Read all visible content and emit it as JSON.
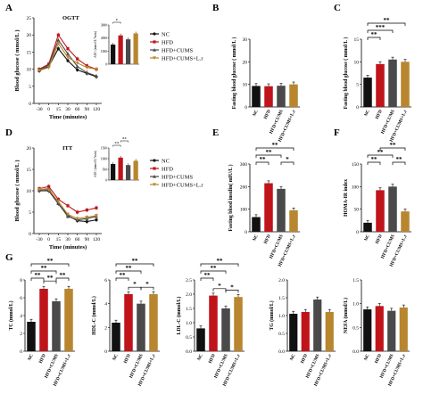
{
  "colors": {
    "NC": "#111111",
    "HFD": "#c0141b",
    "HFD+CUMS": "#4a4a4a",
    "HFD+CUMS+L.r": "#b8862e"
  },
  "groups": [
    "NC",
    "HFD",
    "HFD+CUMS",
    "HFD+CUMS+L.r"
  ],
  "chart_data": [
    {
      "id": "A",
      "type": "line",
      "title": "OGTT",
      "xlabel": "Time (minutes)",
      "ylabel": "Blood glucose ( mmol/L )",
      "x": [
        -30,
        0,
        15,
        30,
        60,
        90,
        120
      ],
      "x_tick_labels": [
        "-30",
        "0",
        "15",
        "30",
        "60",
        "90",
        "120"
      ],
      "ylim": [
        0,
        25
      ],
      "y_ticks": [
        "0",
        "5",
        "10",
        "15",
        "20",
        "25"
      ],
      "legend": "right",
      "series": [
        {
          "name": "NC",
          "values": [
            9.5,
            10.8,
            16.0,
            12.5,
            9.8,
            8.8,
            7.8
          ]
        },
        {
          "name": "HFD",
          "values": [
            10.0,
            11.5,
            20.0,
            16.0,
            13.0,
            11.0,
            10.0
          ]
        },
        {
          "name": "HFD+CUMS",
          "values": [
            9.8,
            11.2,
            18.5,
            14.5,
            10.8,
            9.0,
            8.0
          ]
        },
        {
          "name": "HFD+CUMS+L.r",
          "values": [
            9.6,
            10.5,
            17.5,
            13.5,
            11.8,
            10.5,
            10.0
          ]
        }
      ],
      "inset": {
        "type": "bar",
        "ylabel": "AUC (mmol/L*min)",
        "ylim": [
          0,
          3000
        ],
        "y_ticks": [
          "0",
          "1000",
          "2000",
          "3000"
        ],
        "values": [
          1500,
          2200,
          1900,
          2350
        ],
        "sig": [
          "*"
        ]
      }
    },
    {
      "id": "B",
      "type": "bar",
      "ylabel": "Fasting blood glucose ( mmol/L )",
      "ylim": [
        0,
        30
      ],
      "y_ticks": [
        "0",
        "10",
        "20",
        "30"
      ],
      "categories": [
        "NC",
        "HFD",
        "HFD+CUMS",
        "HFD+CUMS+L.r"
      ],
      "values": [
        9.3,
        9.2,
        9.4,
        10.0
      ],
      "sig": []
    },
    {
      "id": "C",
      "type": "bar",
      "ylabel": "Fasting blood glucose ( mmol/L )",
      "ylim": [
        0,
        15
      ],
      "y_ticks": [
        "0",
        "5",
        "10",
        "15"
      ],
      "categories": [
        "NC",
        "HFD",
        "HFD+CUMS",
        "HFD+CUMS+L.r"
      ],
      "values": [
        6.5,
        9.5,
        10.5,
        10.0
      ],
      "sig": [
        "**",
        "***",
        "**"
      ]
    },
    {
      "id": "D",
      "type": "line",
      "title": "ITT",
      "xlabel": "Time (minutes)",
      "ylabel": "Blood glucose ( mmol/L )",
      "x": [
        -30,
        0,
        15,
        30,
        60,
        90,
        120
      ],
      "x_tick_labels": [
        "-30",
        "0",
        "15",
        "30",
        "60",
        "90",
        "120"
      ],
      "ylim": [
        0,
        20
      ],
      "y_ticks": [
        "0",
        "5",
        "10",
        "15",
        "20"
      ],
      "legend": "right",
      "series": [
        {
          "name": "NC",
          "values": [
            10.0,
            10.0,
            7.0,
            4.2,
            3.0,
            2.8,
            3.2
          ]
        },
        {
          "name": "HFD",
          "values": [
            10.5,
            11.0,
            8.0,
            6.5,
            5.0,
            5.5,
            6.0
          ]
        },
        {
          "name": "HFD+CUMS",
          "values": [
            10.2,
            10.5,
            7.0,
            4.0,
            3.2,
            3.5,
            4.0
          ]
        },
        {
          "name": "HFD+CUMS+L.r",
          "values": [
            10.3,
            10.2,
            7.5,
            4.5,
            3.5,
            3.8,
            4.2
          ]
        }
      ],
      "inset": {
        "type": "bar",
        "ylabel": "AUC (mmol/L*min)",
        "ylim": [
          0,
          1500
        ],
        "y_ticks": [
          "0",
          "500",
          "1000",
          "1500"
        ],
        "values": [
          750,
          1050,
          700,
          900
        ],
        "sig": [
          "**",
          "**"
        ]
      }
    },
    {
      "id": "E",
      "type": "bar",
      "ylabel": "Fasting blood insulin( mIU/L )",
      "ylim": [
        0,
        300
      ],
      "y_ticks": [
        "0",
        "100",
        "200",
        "300"
      ],
      "categories": [
        "NC",
        "HFD",
        "HFD+CUMS",
        "HFD+CUMS+L.r"
      ],
      "values": [
        65,
        215,
        190,
        95
      ],
      "sig": [
        "**",
        "**",
        "**",
        "*"
      ]
    },
    {
      "id": "F",
      "type": "bar",
      "ylabel": "HOMA-IR index",
      "ylim": [
        0,
        150
      ],
      "y_ticks": [
        "0",
        "50",
        "100",
        "150"
      ],
      "categories": [
        "NC",
        "HFD",
        "HFD+CUMS",
        "HFD+CUMS+L.r"
      ],
      "values": [
        20,
        92,
        100,
        45
      ],
      "sig": [
        "**",
        "**",
        "**",
        "**"
      ]
    },
    {
      "id": "G1",
      "type": "bar",
      "ylabel": "TC (mmol/L)",
      "ylim": [
        0,
        8
      ],
      "y_ticks": [
        "0",
        "2",
        "4",
        "6",
        "8"
      ],
      "categories": [
        "NC",
        "HFD",
        "HFD+CUMS",
        "HFD+CUMS+L.r"
      ],
      "values": [
        3.3,
        7.0,
        5.6,
        7.0
      ],
      "sig": [
        "**",
        "**",
        "**",
        "**",
        "**"
      ]
    },
    {
      "id": "G2",
      "type": "bar",
      "ylabel": "HDL-C (mmol/L)",
      "ylim": [
        0,
        6
      ],
      "y_ticks": [
        "0",
        "2",
        "4",
        "6"
      ],
      "categories": [
        "NC",
        "HFD",
        "HFD+CUMS",
        "HFD+CUMS+L.r"
      ],
      "values": [
        2.4,
        4.8,
        4.0,
        4.8
      ],
      "sig": [
        "**",
        "**",
        "**",
        "*",
        "*"
      ]
    },
    {
      "id": "G3",
      "type": "bar",
      "ylabel": "LDL-C (mmol/L)",
      "ylim": [
        0,
        2.5
      ],
      "y_ticks": [
        "0.0",
        "0.5",
        "1.0",
        "1.5",
        "2.0",
        "2.5"
      ],
      "categories": [
        "NC",
        "HFD",
        "HFD+CUMS",
        "HFD+CUMS+L.r"
      ],
      "values": [
        0.8,
        1.95,
        1.5,
        1.9
      ],
      "sig": [
        "**",
        "**",
        "**",
        "*",
        "*"
      ]
    },
    {
      "id": "G4",
      "type": "bar",
      "ylabel": "TG (mmol/L)",
      "ylim": [
        0,
        2.0
      ],
      "y_ticks": [
        "0.0",
        "0.5",
        "1.0",
        "1.5",
        "2.0"
      ],
      "categories": [
        "NC",
        "HFD",
        "HFD+CUMS",
        "HFD+CUMS+L.r"
      ],
      "values": [
        1.05,
        1.1,
        1.45,
        1.1
      ],
      "sig": []
    },
    {
      "id": "G5",
      "type": "bar",
      "ylabel": "NEFA (mmol/L)",
      "ylim": [
        0,
        1.5
      ],
      "y_ticks": [
        "0.0",
        "0.5",
        "1.0",
        "1.5"
      ],
      "categories": [
        "NC",
        "HFD",
        "HFD+CUMS",
        "HFD+CUMS+L.r"
      ],
      "values": [
        0.88,
        0.95,
        0.85,
        0.92
      ],
      "sig": []
    }
  ]
}
